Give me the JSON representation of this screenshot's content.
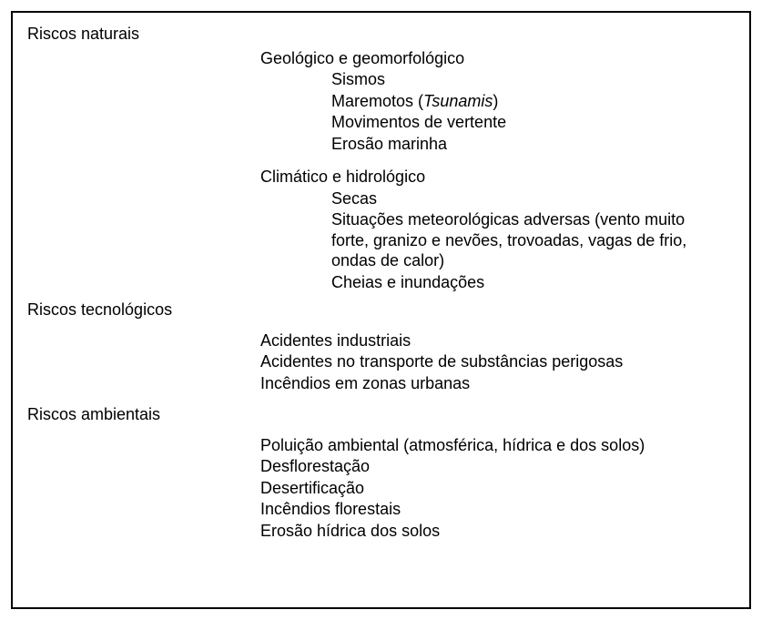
{
  "border_color": "#000000",
  "background_color": "#ffffff",
  "text_color": "#000000",
  "font_family": "Arial",
  "font_size_pt": 13,
  "categories": [
    {
      "title": "Riscos naturais",
      "subcategories": [
        {
          "title": "Geológico e geomorfológico",
          "items": [
            "Sismos",
            "Maremotos (",
            "Movimentos de vertente",
            "Erosão marinha"
          ],
          "item1_italic_tail": "Tsunamis",
          "item1_suffix": ")"
        },
        {
          "title": "Climático e hidrológico",
          "items": [
            "Secas",
            "Situações meteorológicas adversas (vento muito forte, granizo e nevões, trovoadas, vagas de frio, ondas de calor)",
            "Cheias e inundações"
          ]
        }
      ]
    },
    {
      "title": "Riscos tecnológicos",
      "direct_items": [
        "Acidentes industriais",
        "Acidentes no transporte de substâncias perigosas",
        "Incêndios em zonas urbanas"
      ]
    },
    {
      "title": "Riscos ambientais",
      "direct_items": [
        "Poluição ambiental (atmosférica, hídrica e dos solos)",
        "Desflorestação",
        "Desertificação",
        "Incêndios florestais",
        "Erosão hídrica dos solos"
      ]
    }
  ]
}
